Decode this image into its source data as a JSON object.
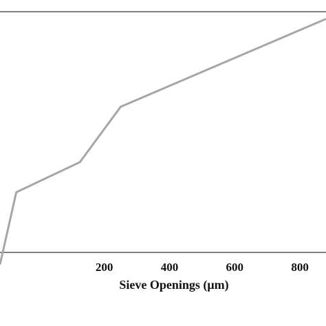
{
  "chart_data": {
    "type": "line",
    "title": "",
    "xlabel": "Sieve Openings (μm)",
    "ylabel": "",
    "xlim": [
      -120,
      880
    ],
    "ylim": [
      0,
      100
    ],
    "x_ticks": [
      {
        "value": 200,
        "label": "200"
      },
      {
        "value": 400,
        "label": "400"
      },
      {
        "value": 600,
        "label": "600"
      },
      {
        "value": 800,
        "label": "800"
      }
    ],
    "grid": false,
    "series": [
      {
        "color": "#a6a6a6",
        "x": [
          -120,
          -70,
          125,
          250,
          500,
          880
        ],
        "y": [
          -5,
          25,
          37.5,
          60.5,
          75,
          97
        ]
      }
    ]
  },
  "colors": {
    "frame": "#333333",
    "line": "#a6a6a6",
    "text": "#111111"
  }
}
